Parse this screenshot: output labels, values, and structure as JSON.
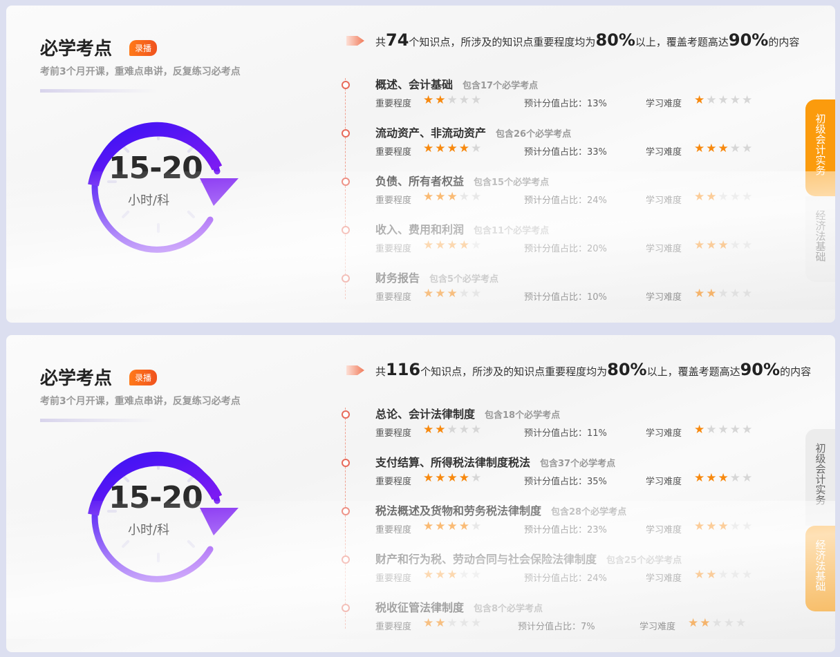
{
  "colors": {
    "accent": "#fb9b0d",
    "star_on": "#f7890f",
    "star_off": "#d6d6d6",
    "clock_gradient": [
      "#3a12f5",
      "#8a1df2"
    ]
  },
  "cards": [
    {
      "title": "必学考点",
      "badge": "录播",
      "subtitle": "考前3个月开课，重难点串讲，反复练习必考点",
      "hours": "15-20",
      "hours_unit": "小时/科",
      "summary": {
        "pre": "共",
        "count": "74",
        "mid1": "个知识点，所涉及的知识点重要程度均为",
        "p1": "80%",
        "mid2": "以上，覆盖考题高达",
        "p2": "90%",
        "post": "的内容"
      },
      "items": [
        {
          "title": "概述、会计基础",
          "count": "包含17个必学考点",
          "importance": 2,
          "score_label": "预计分值占比：",
          "score": "13%",
          "difficulty": 1
        },
        {
          "title": "流动资产、非流动资产",
          "count": "包含26个必学考点",
          "importance": 4,
          "score_label": "预计分值占比：",
          "score": "33%",
          "difficulty": 3
        },
        {
          "title": "负债、所有者权益",
          "count": "包含15个必学考点",
          "importance": 3,
          "score_label": "预计分值占比：",
          "score": "24%",
          "difficulty": 2
        },
        {
          "title": "收入、费用和利润",
          "count": "包含11个必学考点",
          "importance": 4,
          "score_label": "预计分值占比：",
          "score": "20%",
          "difficulty": 3
        },
        {
          "title": "财务报告",
          "count": "包含5个必学考点",
          "importance": 3,
          "score_label": "预计分值占比：",
          "score": "10%",
          "difficulty": 2
        }
      ],
      "tabs": [
        {
          "label": "初级会计实务",
          "active": true
        },
        {
          "label": "经济法基础",
          "active": false
        }
      ]
    },
    {
      "title": "必学考点",
      "badge": "录播",
      "subtitle": "考前3个月开课，重难点串讲，反复练习必考点",
      "hours": "15-20",
      "hours_unit": "小时/科",
      "summary": {
        "pre": "共",
        "count": "116",
        "mid1": "个知识点，所涉及的知识点重要程度均为",
        "p1": "80%",
        "mid2": "以上，覆盖考题高达",
        "p2": "90%",
        "post": "的内容"
      },
      "items": [
        {
          "title": "总论、会计法律制度",
          "count": "包含18个必学考点",
          "importance": 2,
          "score_label": "预计分值占比：",
          "score": "11%",
          "difficulty": 1
        },
        {
          "title": "支付结算、所得税法律制度税法",
          "count": "包含37个必学考点",
          "importance": 4,
          "score_label": "预计分值占比：",
          "score": "35%",
          "difficulty": 3
        },
        {
          "title": "税法概述及货物和劳务税法律制度",
          "count": "包含28个必学考点",
          "importance": 4,
          "score_label": "预计分值占比：",
          "score": "23%",
          "difficulty": 3
        },
        {
          "title": "财产和行为税、劳动合同与社会保险法律制度",
          "count": "包含25个必学考点",
          "importance": 3,
          "score_label": "预计分值占比：",
          "score": "24%",
          "difficulty": 2
        },
        {
          "title": "税收征管法律制度",
          "count": "包含8个必学考点",
          "importance": 2,
          "score_label": "预计分值占比：",
          "score": "7%",
          "difficulty": 2
        }
      ],
      "tabs": [
        {
          "label": "初级会计实务",
          "active": false
        },
        {
          "label": "经济法基础",
          "active": true
        }
      ]
    }
  ],
  "labels": {
    "importance": "重要程度",
    "difficulty": "学习难度"
  }
}
